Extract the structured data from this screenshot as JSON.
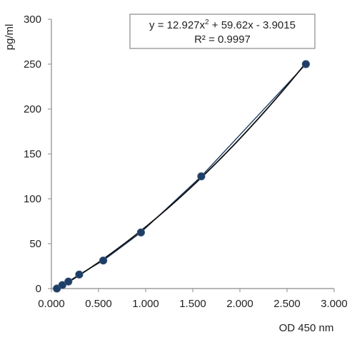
{
  "chart_data": {
    "type": "scatter",
    "xlabel": "OD 450 nm",
    "ylabel": "pg/ml",
    "xlim": [
      0,
      3
    ],
    "ylim": [
      0,
      300
    ],
    "x_ticks": [
      "0.000",
      "0.500",
      "1.000",
      "1.500",
      "2.000",
      "2.500",
      "3.000"
    ],
    "y_ticks": [
      "0",
      "50",
      "100",
      "150",
      "200",
      "250",
      "300"
    ],
    "points": [
      {
        "x": 0.058,
        "y": 0
      },
      {
        "x": 0.116,
        "y": 3.9
      },
      {
        "x": 0.18,
        "y": 7.8
      },
      {
        "x": 0.295,
        "y": 15.6
      },
      {
        "x": 0.55,
        "y": 31.2
      },
      {
        "x": 0.95,
        "y": 62.5
      },
      {
        "x": 1.59,
        "y": 125
      },
      {
        "x": 2.7,
        "y": 250
      }
    ],
    "trendline": {
      "type": "polynomial",
      "coefficients": {
        "a": 12.927,
        "b": 59.62,
        "c": -3.9015
      }
    },
    "equation": {
      "main": "y = 12.927x",
      "sup": "2",
      "rest": " + 59.62x - 3.9015",
      "r2": "R² = 0.9997"
    },
    "marker_color": "#1f3e66",
    "line_color": "#1f3e66",
    "grid": false
  }
}
